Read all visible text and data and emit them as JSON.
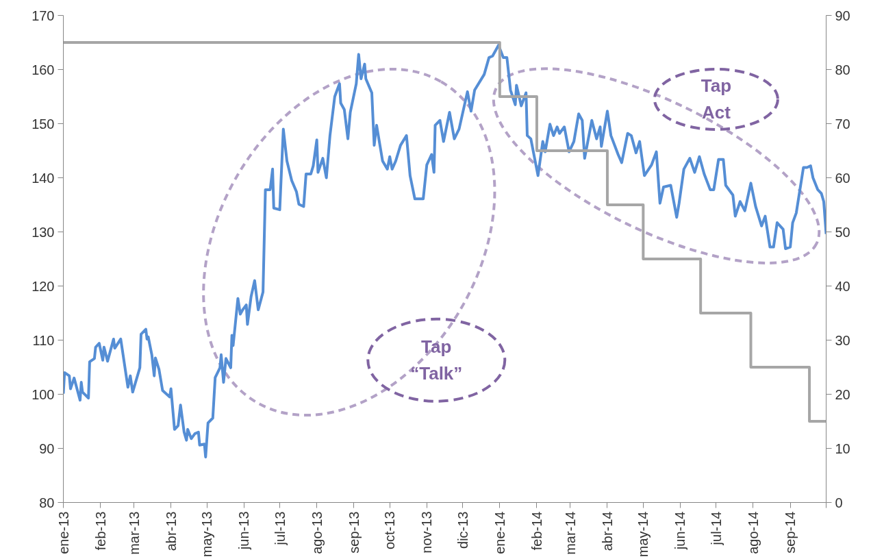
{
  "chart_data": {
    "type": "line",
    "xlim": [
      "2013-01-01",
      "2014-10-01"
    ],
    "xticks": [
      {
        "value": "2013-01-01",
        "label": "ene-13"
      },
      {
        "value": "2013-02-01",
        "label": "feb-13"
      },
      {
        "value": "2013-03-01",
        "label": "mar-13"
      },
      {
        "value": "2013-04-01",
        "label": "abr-13"
      },
      {
        "value": "2013-05-01",
        "label": "may-13"
      },
      {
        "value": "2013-06-01",
        "label": "jun-13"
      },
      {
        "value": "2013-07-01",
        "label": "jul-13"
      },
      {
        "value": "2013-08-01",
        "label": "ago-13"
      },
      {
        "value": "2013-09-01",
        "label": "sep-13"
      },
      {
        "value": "2013-10-01",
        "label": "oct-13"
      },
      {
        "value": "2013-11-01",
        "label": "nov-13"
      },
      {
        "value": "2013-12-01",
        "label": "dic-13"
      },
      {
        "value": "2014-01-01",
        "label": "ene-14"
      },
      {
        "value": "2014-02-01",
        "label": "feb-14"
      },
      {
        "value": "2014-03-01",
        "label": "mar-14"
      },
      {
        "value": "2014-04-01",
        "label": "abr-14"
      },
      {
        "value": "2014-05-01",
        "label": "may-14"
      },
      {
        "value": "2014-06-01",
        "label": "jun-14"
      },
      {
        "value": "2014-07-01",
        "label": "jul-14"
      },
      {
        "value": "2014-08-01",
        "label": "ago-14"
      },
      {
        "value": "2014-09-01",
        "label": "sep-14"
      },
      {
        "value": "2014-10-01",
        "label": null
      }
    ],
    "ylim": [
      80,
      170
    ],
    "yticks": [
      80,
      90,
      100,
      110,
      120,
      130,
      140,
      150,
      160,
      170
    ],
    "y2lim": [
      0,
      90
    ],
    "y2ticks": [
      0,
      10,
      20,
      30,
      40,
      50,
      60,
      70,
      80,
      90
    ],
    "annotations": [
      "Tap\n“Talk”",
      "Tap\nAct"
    ],
    "series": [
      {
        "color": "#558ed5",
        "x": [
          "2013-01-01",
          "2013-01-02",
          "2013-01-06",
          "2013-01-07",
          "2013-01-10",
          "2013-01-15",
          "2013-01-16",
          "2013-01-17",
          "2013-01-22",
          "2013-01-23",
          "2013-01-27",
          "2013-01-28",
          "2013-01-31",
          "2013-02-03",
          "2013-02-04",
          "2013-02-07",
          "2013-02-12",
          "2013-02-13",
          "2013-02-18",
          "2013-02-24",
          "2013-02-26",
          "2013-02-28",
          "2013-03-06",
          "2013-03-07",
          "2013-03-11",
          "2013-03-12",
          "2013-03-13",
          "2013-03-16",
          "2013-03-18",
          "2013-03-19",
          "2013-03-22",
          "2013-03-25",
          "2013-03-31",
          "2013-04-01",
          "2013-04-04",
          "2013-04-07",
          "2013-04-09",
          "2013-04-12",
          "2013-04-14",
          "2013-04-15",
          "2013-04-18",
          "2013-04-21",
          "2013-04-24",
          "2013-04-25",
          "2013-04-29",
          "2013-04-30",
          "2013-05-02",
          "2013-05-06",
          "2013-05-08",
          "2013-05-12",
          "2013-05-13",
          "2013-05-15",
          "2013-05-17",
          "2013-05-21",
          "2013-05-22",
          "2013-05-23",
          "2013-05-27",
          "2013-05-29",
          "2013-05-31",
          "2013-06-03",
          "2013-06-04",
          "2013-06-07",
          "2013-06-10",
          "2013-06-13",
          "2013-06-17",
          "2013-06-19",
          "2013-06-23",
          "2013-06-25",
          "2013-06-26",
          "2013-07-01",
          "2013-07-04",
          "2013-07-07",
          "2013-07-11",
          "2013-07-15",
          "2013-07-17",
          "2013-07-21",
          "2013-07-23",
          "2013-07-27",
          "2013-07-29",
          "2013-08-01",
          "2013-08-02",
          "2013-08-06",
          "2013-08-09",
          "2013-08-12",
          "2013-08-16",
          "2013-08-20",
          "2013-08-21",
          "2013-08-24",
          "2013-08-27",
          "2013-08-29",
          "2013-09-03",
          "2013-09-05",
          "2013-09-07",
          "2013-09-10",
          "2013-09-11",
          "2013-09-16",
          "2013-09-18",
          "2013-09-20",
          "2013-09-25",
          "2013-09-29",
          "2013-10-01",
          "2013-10-03",
          "2013-10-06",
          "2013-10-10",
          "2013-10-15",
          "2013-10-18",
          "2013-10-22",
          "2013-10-29",
          "2013-11-01",
          "2013-11-05",
          "2013-11-07",
          "2013-11-08",
          "2013-11-12",
          "2013-11-15",
          "2013-11-20",
          "2013-11-24",
          "2013-11-28",
          "2013-12-05",
          "2013-12-08",
          "2013-12-11",
          "2013-12-19",
          "2013-12-23",
          "2013-12-26",
          "2013-12-31",
          "2014-01-04",
          "2014-01-07",
          "2014-01-10",
          "2014-01-14",
          "2014-01-15",
          "2014-01-19",
          "2014-01-23",
          "2014-01-24",
          "2014-01-27",
          "2014-02-02",
          "2014-02-06",
          "2014-02-08",
          "2014-02-12",
          "2014-02-15",
          "2014-02-18",
          "2014-02-20",
          "2014-02-24",
          "2014-02-28",
          "2014-03-04",
          "2014-03-08",
          "2014-03-11",
          "2014-03-13",
          "2014-03-19",
          "2014-03-23",
          "2014-03-26",
          "2014-03-27",
          "2014-04-01",
          "2014-04-04",
          "2014-04-10",
          "2014-04-13",
          "2014-04-18",
          "2014-04-21",
          "2014-04-25",
          "2014-04-28",
          "2014-05-02",
          "2014-05-08",
          "2014-05-12",
          "2014-05-15",
          "2014-05-18",
          "2014-05-24",
          "2014-05-29",
          "2014-05-31",
          "2014-06-04",
          "2014-06-09",
          "2014-06-13",
          "2014-06-17",
          "2014-06-21",
          "2014-06-26",
          "2014-06-29",
          "2014-07-03",
          "2014-07-07",
          "2014-07-09",
          "2014-07-15",
          "2014-07-17",
          "2014-07-21",
          "2014-07-25",
          "2014-07-30",
          "2014-08-03",
          "2014-08-08",
          "2014-08-11",
          "2014-08-15",
          "2014-08-18",
          "2014-08-21",
          "2014-08-26",
          "2014-08-28",
          "2014-09-01",
          "2014-09-03",
          "2014-09-06",
          "2014-09-12",
          "2014-09-15",
          "2014-09-18",
          "2014-09-20",
          "2014-09-24",
          "2014-09-27",
          "2014-09-29",
          "2014-10-01"
        ],
        "values": [
          100.1,
          104,
          103.4,
          101,
          103,
          98.9,
          102.2,
          100.4,
          99.3,
          106,
          106.6,
          108.7,
          109.4,
          106.3,
          108.7,
          106.1,
          110.2,
          108.5,
          110.2,
          101.3,
          103.4,
          100.4,
          104.9,
          111.1,
          112,
          110.2,
          110.6,
          107.3,
          103.4,
          106.7,
          104.6,
          100.7,
          99.5,
          101,
          93.5,
          94.2,
          98,
          93,
          91.5,
          93.5,
          91.8,
          92.7,
          93,
          90.6,
          90.8,
          88.4,
          94.7,
          95.6,
          103.1,
          104.9,
          107.3,
          102.2,
          106.6,
          104.9,
          110.9,
          109,
          117.7,
          114.8,
          115.6,
          116.5,
          112.9,
          118,
          121,
          115.6,
          118.9,
          137.8,
          137.8,
          141.6,
          134.4,
          134.1,
          149,
          143.1,
          139.5,
          137.4,
          135.1,
          134.7,
          140.7,
          140.7,
          142.2,
          147,
          141,
          143.6,
          140,
          147.8,
          155,
          157.4,
          153.8,
          152.6,
          147.2,
          152.1,
          157.4,
          162.8,
          158.3,
          161,
          158.3,
          155.7,
          146,
          149.7,
          143.1,
          141.6,
          143.9,
          141.6,
          143.1,
          146,
          147.8,
          140.4,
          136.1,
          136.1,
          142.4,
          144.3,
          141,
          149.7,
          150.6,
          146.7,
          152.1,
          147.2,
          149,
          155.9,
          152.3,
          156.2,
          159.1,
          162.2,
          162.5,
          164.5,
          162.2,
          162.2,
          156.2,
          153.5,
          157.1,
          153.3,
          155.7,
          147.8,
          147.2,
          140.4,
          146.7,
          144.8,
          149.9,
          147.8,
          149.4,
          148.2,
          149.4,
          144.8,
          146.7,
          151.8,
          150.6,
          143.6,
          150.6,
          147.2,
          149.4,
          145.8,
          152.3,
          147.8,
          144.3,
          142.8,
          148.2,
          147.8,
          144.6,
          146.7,
          140.4,
          142.4,
          144.8,
          135.3,
          138.3,
          138.6,
          132.7,
          135.3,
          141.6,
          143.6,
          141,
          143.9,
          140.7,
          137.8,
          137.8,
          143.4,
          143.4,
          138.6,
          136.8,
          132.9,
          135.6,
          133.9,
          139,
          134.7,
          131.1,
          132.9,
          127.2,
          127.2,
          131.7,
          130.5,
          126.9,
          127.2,
          131.7,
          133.5,
          141.9,
          141.9,
          142.2,
          140,
          137.8,
          137.1,
          135.6,
          129.6
        ]
      },
      {
        "type": "step",
        "axis": "y2",
        "color": "#a6a6a6",
        "x": [
          "2013-01-01",
          "2014-01-01",
          "2014-02-01",
          "2014-04-01",
          "2014-05-01",
          "2014-06-18",
          "2014-07-30",
          "2014-09-17",
          "2014-10-01"
        ],
        "values": [
          85,
          75,
          65,
          55,
          45,
          35,
          25,
          15,
          15
        ]
      }
    ]
  }
}
